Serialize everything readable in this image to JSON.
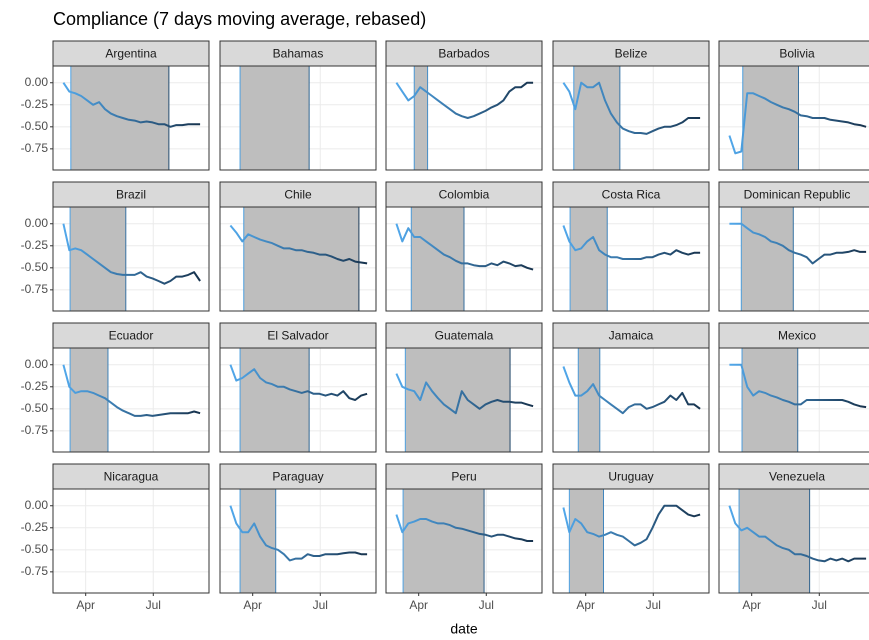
{
  "chart_data": {
    "type": "line",
    "title": "Compliance (7 days moving average, rebased)",
    "x_label": "date",
    "x": [
      62,
      70,
      78,
      86,
      94,
      102,
      110,
      118,
      126,
      134,
      142,
      150,
      158,
      166,
      174,
      182,
      190,
      198,
      206,
      214,
      222,
      230,
      238,
      246
    ],
    "xlim": [
      48,
      258
    ],
    "xticks": [
      {
        "value": 92,
        "label": "Apr"
      },
      {
        "value": 183,
        "label": "Jul"
      }
    ],
    "ylim": [
      -0.99,
      0.19
    ],
    "yticks": [
      {
        "value": 0,
        "label": "0.00"
      },
      {
        "value": -0.25,
        "label": "-0.25"
      },
      {
        "value": -0.5,
        "label": "-0.50"
      },
      {
        "value": -0.75,
        "label": "-0.75"
      }
    ],
    "grid": true,
    "line_colors": [
      "#56b1f7",
      "#132b43"
    ],
    "shade_color": "#bebebe",
    "series": [
      {
        "name": "Argentina",
        "shade": [
          72,
          204
        ],
        "values": [
          0.0,
          -0.1,
          -0.12,
          -0.15,
          -0.2,
          -0.25,
          -0.22,
          -0.3,
          -0.35,
          -0.38,
          -0.4,
          -0.42,
          -0.43,
          -0.45,
          -0.44,
          -0.45,
          -0.47,
          -0.47,
          -0.5,
          -0.48,
          -0.48,
          -0.47,
          -0.47,
          -0.47
        ]
      },
      {
        "name": "Bahamas",
        "shade": [
          75,
          168
        ],
        "values": [
          null,
          null,
          null,
          null,
          null,
          null,
          null,
          null,
          null,
          null,
          null,
          null,
          null,
          null,
          null,
          null,
          null,
          null,
          null,
          null,
          null,
          null,
          null,
          null
        ]
      },
      {
        "name": "Barbados",
        "shade": [
          86,
          104
        ],
        "values": [
          0.0,
          -0.1,
          -0.2,
          -0.15,
          -0.05,
          -0.1,
          -0.15,
          -0.2,
          -0.25,
          -0.3,
          -0.35,
          -0.38,
          -0.4,
          -0.38,
          -0.35,
          -0.32,
          -0.28,
          -0.25,
          -0.2,
          -0.1,
          -0.05,
          -0.05,
          0.0,
          0.0
        ]
      },
      {
        "name": "Belize",
        "shade": [
          76,
          138
        ],
        "values": [
          0.0,
          -0.1,
          -0.3,
          0.0,
          -0.05,
          -0.05,
          0.0,
          -0.2,
          -0.35,
          -0.45,
          -0.52,
          -0.55,
          -0.57,
          -0.57,
          -0.58,
          -0.55,
          -0.52,
          -0.5,
          -0.5,
          -0.48,
          -0.45,
          -0.4,
          -0.4,
          -0.4
        ]
      },
      {
        "name": "Bolivia",
        "shade": [
          80,
          155
        ],
        "values": [
          -0.6,
          -0.8,
          -0.78,
          -0.12,
          -0.12,
          -0.15,
          -0.18,
          -0.22,
          -0.25,
          -0.28,
          -0.3,
          -0.33,
          -0.37,
          -0.38,
          -0.4,
          -0.4,
          -0.4,
          -0.42,
          -0.43,
          -0.44,
          -0.45,
          -0.47,
          -0.48,
          -0.5
        ]
      },
      {
        "name": "Brazil",
        "shade": [
          71,
          146
        ],
        "values": [
          0.0,
          -0.3,
          -0.28,
          -0.3,
          -0.35,
          -0.4,
          -0.45,
          -0.5,
          -0.55,
          -0.57,
          -0.58,
          -0.58,
          -0.58,
          -0.55,
          -0.6,
          -0.62,
          -0.65,
          -0.68,
          -0.65,
          -0.6,
          -0.6,
          -0.58,
          -0.55,
          -0.65
        ]
      },
      {
        "name": "Chile",
        "shade": [
          80,
          235
        ],
        "values": [
          -0.02,
          -0.1,
          -0.2,
          -0.12,
          -0.15,
          -0.18,
          -0.2,
          -0.22,
          -0.25,
          -0.28,
          -0.28,
          -0.3,
          -0.3,
          -0.32,
          -0.33,
          -0.35,
          -0.35,
          -0.37,
          -0.4,
          -0.42,
          -0.4,
          -0.43,
          -0.44,
          -0.45
        ]
      },
      {
        "name": "Colombia",
        "shade": [
          82,
          153
        ],
        "values": [
          0.0,
          -0.2,
          -0.05,
          -0.15,
          -0.15,
          -0.2,
          -0.25,
          -0.3,
          -0.35,
          -0.38,
          -0.42,
          -0.45,
          -0.45,
          -0.47,
          -0.48,
          -0.48,
          -0.45,
          -0.47,
          -0.43,
          -0.45,
          -0.48,
          -0.47,
          -0.5,
          -0.52
        ]
      },
      {
        "name": "Costa Rica",
        "shade": [
          71,
          121
        ],
        "values": [
          -0.02,
          -0.2,
          -0.3,
          -0.28,
          -0.2,
          -0.15,
          -0.3,
          -0.35,
          -0.38,
          -0.38,
          -0.4,
          -0.4,
          -0.4,
          -0.4,
          -0.38,
          -0.38,
          -0.35,
          -0.33,
          -0.35,
          -0.3,
          -0.33,
          -0.35,
          -0.33,
          -0.33
        ]
      },
      {
        "name": "Dominican Republic",
        "shade": [
          78,
          148
        ],
        "values": [
          0.0,
          0.0,
          0.0,
          -0.05,
          -0.1,
          -0.12,
          -0.15,
          -0.2,
          -0.22,
          -0.25,
          -0.3,
          -0.33,
          -0.35,
          -0.38,
          -0.45,
          -0.4,
          -0.35,
          -0.35,
          -0.33,
          -0.33,
          -0.32,
          -0.3,
          -0.32,
          -0.32
        ]
      },
      {
        "name": "Ecuador",
        "shade": [
          71,
          122
        ],
        "values": [
          0.0,
          -0.25,
          -0.32,
          -0.3,
          -0.3,
          -0.32,
          -0.35,
          -0.38,
          -0.43,
          -0.48,
          -0.52,
          -0.55,
          -0.58,
          -0.58,
          -0.57,
          -0.58,
          -0.57,
          -0.56,
          -0.55,
          -0.55,
          -0.55,
          -0.55,
          -0.53,
          -0.55
        ]
      },
      {
        "name": "El Salvador",
        "shade": [
          75,
          168
        ],
        "values": [
          0.0,
          -0.18,
          -0.15,
          -0.1,
          -0.05,
          -0.15,
          -0.2,
          -0.22,
          -0.25,
          -0.25,
          -0.28,
          -0.3,
          -0.32,
          -0.3,
          -0.33,
          -0.33,
          -0.35,
          -0.33,
          -0.35,
          -0.3,
          -0.38,
          -0.4,
          -0.35,
          -0.33
        ]
      },
      {
        "name": "Guatemala",
        "shade": [
          74,
          215
        ],
        "values": [
          -0.1,
          -0.25,
          -0.28,
          -0.3,
          -0.4,
          -0.2,
          -0.3,
          -0.38,
          -0.45,
          -0.5,
          -0.55,
          -0.3,
          -0.4,
          -0.45,
          -0.5,
          -0.45,
          -0.42,
          -0.4,
          -0.42,
          -0.42,
          -0.43,
          -0.43,
          -0.45,
          -0.47
        ]
      },
      {
        "name": "Jamaica",
        "shade": [
          82,
          111
        ],
        "values": [
          -0.02,
          -0.2,
          -0.35,
          -0.35,
          -0.3,
          -0.22,
          -0.35,
          -0.4,
          -0.45,
          -0.5,
          -0.55,
          -0.48,
          -0.45,
          -0.45,
          -0.5,
          -0.48,
          -0.45,
          -0.42,
          -0.35,
          -0.4,
          -0.32,
          -0.45,
          -0.45,
          -0.5
        ]
      },
      {
        "name": "Mexico",
        "shade": [
          79,
          154
        ],
        "values": [
          0.0,
          0.0,
          0.0,
          -0.25,
          -0.35,
          -0.3,
          -0.32,
          -0.35,
          -0.37,
          -0.4,
          -0.42,
          -0.45,
          -0.45,
          -0.4,
          -0.4,
          -0.4,
          -0.4,
          -0.4,
          -0.4,
          -0.4,
          -0.42,
          -0.45,
          -0.47,
          -0.48
        ]
      },
      {
        "name": "Nicaragua",
        "shade": null,
        "values": [
          null,
          null,
          null,
          null,
          null,
          null,
          null,
          null,
          null,
          null,
          null,
          null,
          null,
          null,
          null,
          null,
          null,
          null,
          null,
          null,
          null,
          null,
          null,
          null
        ]
      },
      {
        "name": "Paraguay",
        "shade": [
          75,
          123
        ],
        "values": [
          0.0,
          -0.2,
          -0.3,
          -0.3,
          -0.2,
          -0.35,
          -0.45,
          -0.48,
          -0.5,
          -0.55,
          -0.62,
          -0.6,
          -0.6,
          -0.55,
          -0.57,
          -0.57,
          -0.55,
          -0.55,
          -0.55,
          -0.54,
          -0.53,
          -0.53,
          -0.55,
          -0.55
        ]
      },
      {
        "name": "Peru",
        "shade": [
          71,
          180
        ],
        "values": [
          -0.1,
          -0.3,
          -0.2,
          -0.18,
          -0.15,
          -0.15,
          -0.18,
          -0.2,
          -0.2,
          -0.22,
          -0.25,
          -0.26,
          -0.28,
          -0.3,
          -0.32,
          -0.33,
          -0.35,
          -0.33,
          -0.33,
          -0.35,
          -0.37,
          -0.38,
          -0.4,
          -0.4
        ]
      },
      {
        "name": "Uruguay",
        "shade": [
          70,
          116
        ],
        "values": [
          -0.02,
          -0.3,
          -0.15,
          -0.2,
          -0.3,
          -0.32,
          -0.35,
          -0.33,
          -0.3,
          -0.33,
          -0.35,
          -0.4,
          -0.45,
          -0.42,
          -0.38,
          -0.25,
          -0.1,
          0.0,
          0.0,
          0.0,
          -0.05,
          -0.1,
          -0.12,
          -0.1
        ]
      },
      {
        "name": "Venezuela",
        "shade": [
          75,
          170
        ],
        "values": [
          0.0,
          -0.2,
          -0.28,
          -0.25,
          -0.3,
          -0.35,
          -0.35,
          -0.4,
          -0.45,
          -0.48,
          -0.5,
          -0.55,
          -0.55,
          -0.57,
          -0.6,
          -0.62,
          -0.63,
          -0.6,
          -0.62,
          -0.6,
          -0.63,
          -0.6,
          -0.6,
          -0.6
        ]
      }
    ]
  }
}
